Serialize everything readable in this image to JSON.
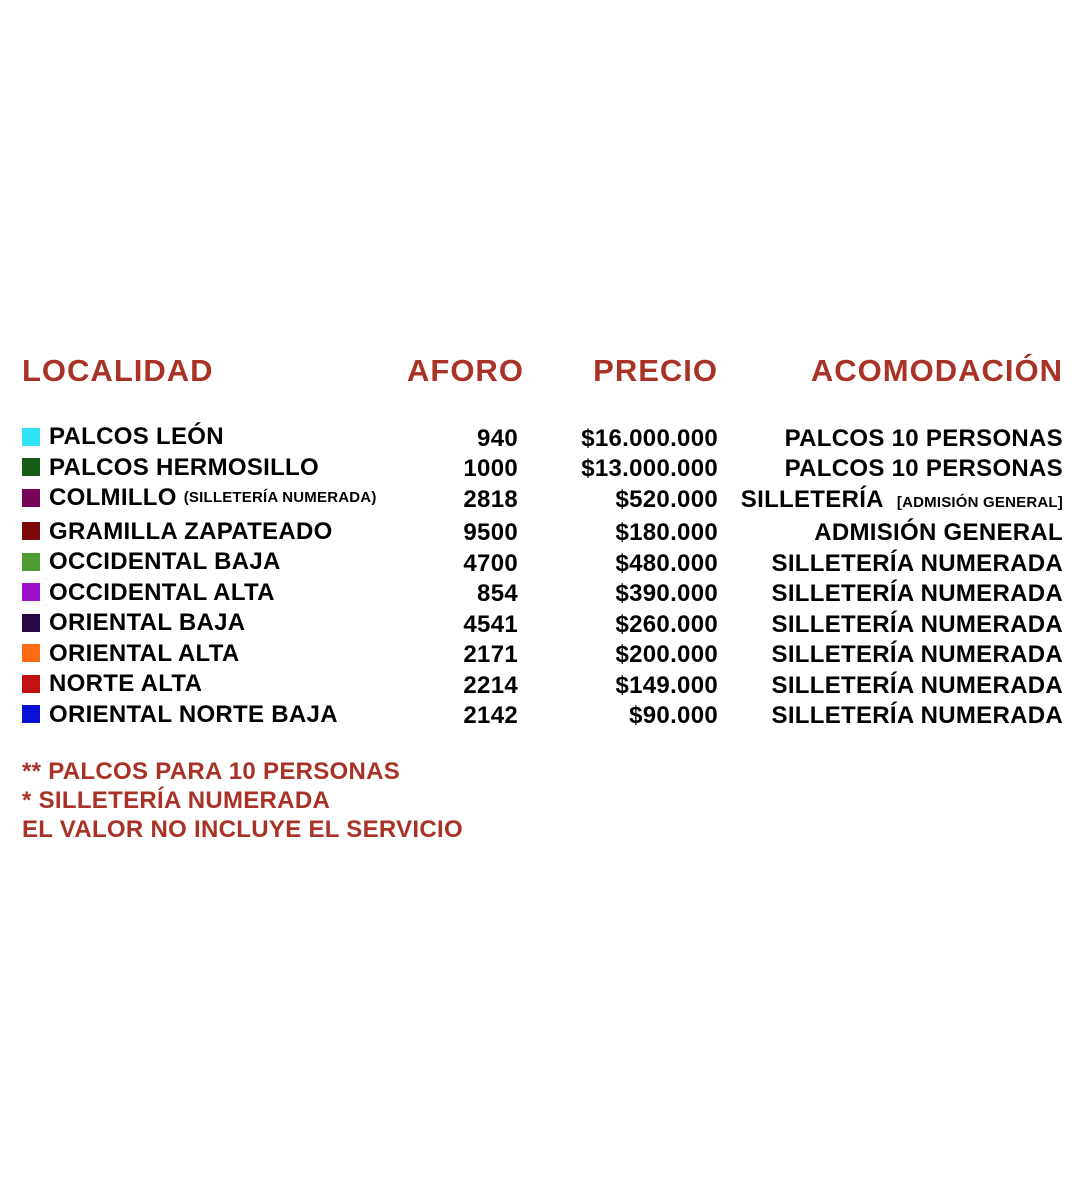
{
  "chart_data": {
    "type": "table",
    "columns": [
      "LOCALIDAD",
      "AFORO",
      "PRECIO",
      "ACOMODACIÓN"
    ],
    "rows": [
      [
        "PALCOS LEÓN",
        940,
        "$16.000.000",
        "PALCOS 10 PERSONAS"
      ],
      [
        "PALCOS HERMOSILLO",
        1000,
        "$13.000.000",
        "PALCOS 10 PERSONAS"
      ],
      [
        "COLMILLO (SILLETERÍA NUMERADA)",
        2818,
        "$520.000",
        "SILLETERÍA [ADMISIÓN GENERAL]"
      ],
      [
        "GRAMILLA ZAPATEADO",
        9500,
        "$180.000",
        "ADMISIÓN GENERAL"
      ],
      [
        "OCCIDENTAL BAJA",
        4700,
        "$480.000",
        "SILLETERÍA NUMERADA"
      ],
      [
        "OCCIDENTAL ALTA",
        854,
        "$390.000",
        "SILLETERÍA NUMERADA"
      ],
      [
        "ORIENTAL BAJA",
        4541,
        "$260.000",
        "SILLETERÍA NUMERADA"
      ],
      [
        "ORIENTAL ALTA",
        2171,
        "$200.000",
        "SILLETERÍA NUMERADA"
      ],
      [
        "NORTE ALTA",
        2214,
        "$149.000",
        "SILLETERÍA NUMERADA"
      ],
      [
        "ORIENTAL NORTE BAJA",
        2142,
        "$90.000",
        "SILLETERÍA NUMERADA"
      ]
    ],
    "legend_colors": [
      "#2ee4f4",
      "#155c15",
      "#78045a",
      "#7c0808",
      "#4f9c33",
      "#9c10cc",
      "#270743",
      "#fc6b13",
      "#c31010",
      "#0a12d8"
    ],
    "notes": [
      "** PALCOS PARA 10 PERSONAS",
      "* SILLETERÍA NUMERADA",
      "EL VALOR NO INCLUYE EL SERVICIO"
    ]
  },
  "table": {
    "headers": {
      "localidad": "LOCALIDAD",
      "aforo": "AFORO",
      "precio": "PRECIO",
      "acomodacion": "ACOMODACIÓN"
    },
    "rows": [
      {
        "swatch": "#2ee4f4",
        "name": "PALCOS LEÓN",
        "name_small": "",
        "aforo": "940",
        "precio": "$16.000.000",
        "acomodacion": "PALCOS 10 PERSONAS",
        "acomodacion_small": ""
      },
      {
        "swatch": "#155c15",
        "name": "PALCOS HERMOSILLO",
        "name_small": "",
        "aforo": "1000",
        "precio": "$13.000.000",
        "acomodacion": "PALCOS 10 PERSONAS",
        "acomodacion_small": ""
      },
      {
        "swatch": "#78045a",
        "name": "COLMILLO",
        "name_small": "(SILLETERÍA NUMERADA)",
        "aforo": "2818",
        "precio": "$520.000",
        "acomodacion": "SILLETERÍA",
        "acomodacion_small": "[ADMISIÓN GENERAL]"
      },
      {
        "swatch": "#7c0808",
        "name": "GRAMILLA ZAPATEADO",
        "name_small": "",
        "aforo": "9500",
        "precio": "$180.000",
        "acomodacion": "ADMISIÓN GENERAL",
        "acomodacion_small": ""
      },
      {
        "swatch": "#4f9c33",
        "name": "OCCIDENTAL BAJA",
        "name_small": "",
        "aforo": "4700",
        "precio": "$480.000",
        "acomodacion": "SILLETERÍA NUMERADA",
        "acomodacion_small": ""
      },
      {
        "swatch": "#9c10cc",
        "name": "OCCIDENTAL ALTA",
        "name_small": "",
        "aforo": "854",
        "precio": "$390.000",
        "acomodacion": "SILLETERÍA NUMERADA",
        "acomodacion_small": ""
      },
      {
        "swatch": "#270743",
        "name": "ORIENTAL BAJA",
        "name_small": "",
        "aforo": "4541",
        "precio": "$260.000",
        "acomodacion": "SILLETERÍA NUMERADA",
        "acomodacion_small": ""
      },
      {
        "swatch": "#fc6b13",
        "name": "ORIENTAL ALTA",
        "name_small": "",
        "aforo": "2171",
        "precio": "$200.000",
        "acomodacion": "SILLETERÍA NUMERADA",
        "acomodacion_small": ""
      },
      {
        "swatch": "#c31010",
        "name": "NORTE ALTA",
        "name_small": "",
        "aforo": "2214",
        "precio": "$149.000",
        "acomodacion": "SILLETERÍA NUMERADA",
        "acomodacion_small": ""
      },
      {
        "swatch": "#0a12d8",
        "name": "ORIENTAL NORTE BAJA",
        "name_small": "",
        "aforo": "2142",
        "precio": "$90.000",
        "acomodacion": "SILLETERÍA NUMERADA",
        "acomodacion_small": ""
      }
    ]
  },
  "notes": [
    "** PALCOS PARA 10 PERSONAS",
    "* SILLETERÍA NUMERADA",
    "EL VALOR NO INCLUYE EL SERVICIO"
  ],
  "colors": {
    "heading_red": "#a93226",
    "body_text": "#000000",
    "background": "#ffffff"
  }
}
